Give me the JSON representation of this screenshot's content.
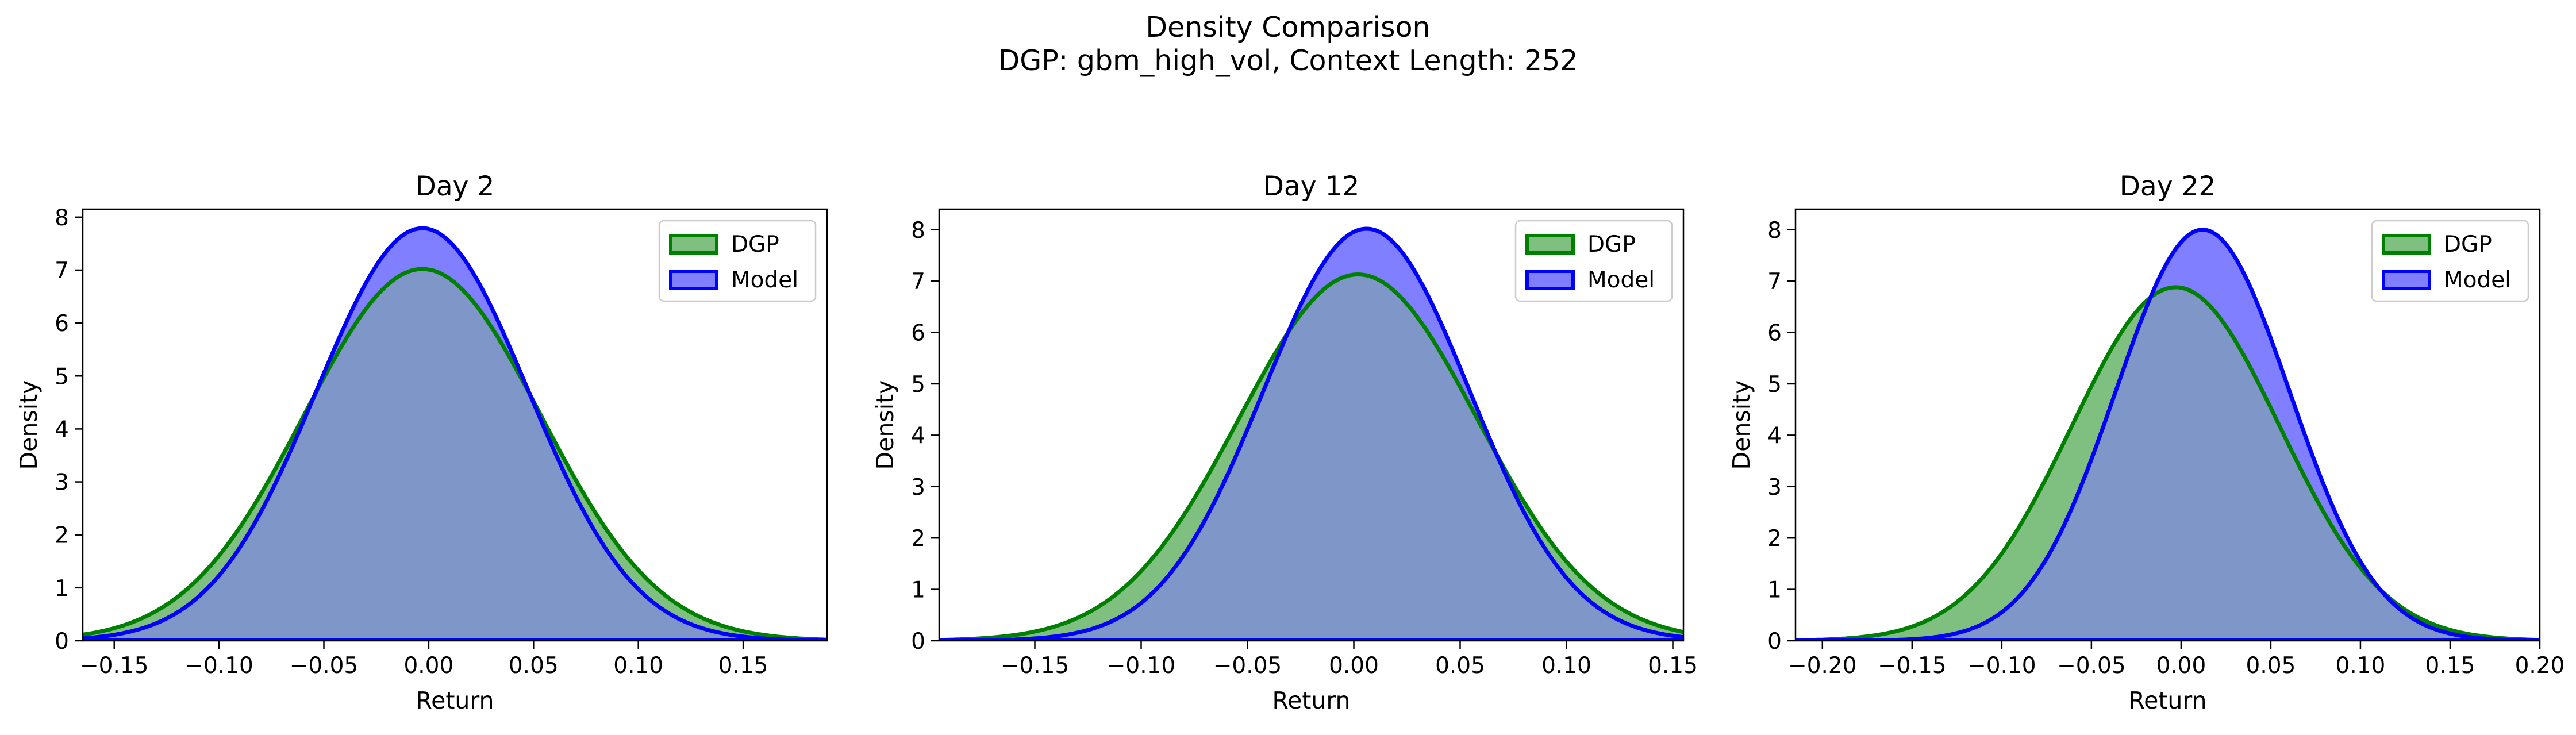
{
  "figure": {
    "title_line1": "Density Comparison",
    "title_line2": "DGP: gbm_high_vol, Context Length: 252"
  },
  "colors": {
    "dgp_line": "#008000",
    "dgp_fill": "#7fbf7f",
    "model_line": "#0000ff",
    "model_fill": "#7f7fff",
    "overlap_fill": "#7f97c8"
  },
  "chart_data": [
    {
      "type": "area",
      "title": "Day 2",
      "xlabel": "Return",
      "ylabel": "Density",
      "xlim": [
        -0.165,
        0.19
      ],
      "ylim": [
        0,
        8.15
      ],
      "xticks": [
        -0.15,
        -0.1,
        -0.05,
        0.0,
        0.05,
        0.1,
        0.15
      ],
      "xtick_labels": [
        "−0.15",
        "−0.10",
        "−0.05",
        "0.00",
        "0.05",
        "0.10",
        "0.15"
      ],
      "yticks": [
        0,
        1,
        2,
        3,
        4,
        5,
        6,
        7,
        8
      ],
      "ytick_labels": [
        "0",
        "1",
        "2",
        "3",
        "4",
        "5",
        "6",
        "7",
        "8"
      ],
      "legend_position": "upper-right",
      "series": [
        {
          "name": "DGP",
          "peak_x": -0.003,
          "peak_density": 7.02,
          "sd": 0.0565
        },
        {
          "name": "Model",
          "peak_x": -0.003,
          "peak_density": 7.79,
          "sd": 0.0505
        }
      ]
    },
    {
      "type": "area",
      "title": "Day 12",
      "xlabel": "Return",
      "ylabel": "Density",
      "xlim": [
        -0.195,
        0.155
      ],
      "ylim": [
        0,
        8.4
      ],
      "xticks": [
        -0.15,
        -0.1,
        -0.05,
        0.0,
        0.05,
        0.1,
        0.15
      ],
      "xtick_labels": [
        "−0.15",
        "−0.10",
        "−0.05",
        "0.00",
        "0.05",
        "0.10",
        "0.15"
      ],
      "yticks": [
        0,
        1,
        2,
        3,
        4,
        5,
        6,
        7,
        8
      ],
      "ytick_labels": [
        "0",
        "1",
        "2",
        "3",
        "4",
        "5",
        "6",
        "7",
        "8"
      ],
      "legend_position": "upper-right",
      "series": [
        {
          "name": "DGP",
          "peak_x": 0.002,
          "peak_density": 7.13,
          "sd": 0.056
        },
        {
          "name": "Model",
          "peak_x": 0.006,
          "peak_density": 8.02,
          "sd": 0.0485
        }
      ]
    },
    {
      "type": "area",
      "title": "Day 22",
      "xlabel": "Return",
      "ylabel": "Density",
      "xlim": [
        -0.215,
        0.2
      ],
      "ylim": [
        0,
        8.4
      ],
      "xticks": [
        -0.2,
        -0.15,
        -0.1,
        -0.05,
        0.0,
        0.05,
        0.1,
        0.15,
        0.2
      ],
      "xtick_labels": [
        "−0.20",
        "−0.15",
        "−0.10",
        "−0.05",
        "0.00",
        "0.05",
        "0.10",
        "0.15",
        "0.20"
      ],
      "yticks": [
        0,
        1,
        2,
        3,
        4,
        5,
        6,
        7,
        8
      ],
      "ytick_labels": [
        "0",
        "1",
        "2",
        "3",
        "4",
        "5",
        "6",
        "7",
        "8"
      ],
      "legend_position": "upper-right",
      "series": [
        {
          "name": "DGP",
          "peak_x": -0.003,
          "peak_density": 6.88,
          "sd": 0.058
        },
        {
          "name": "Model",
          "peak_x": 0.012,
          "peak_density": 8.0,
          "sd": 0.0485
        }
      ]
    }
  ]
}
